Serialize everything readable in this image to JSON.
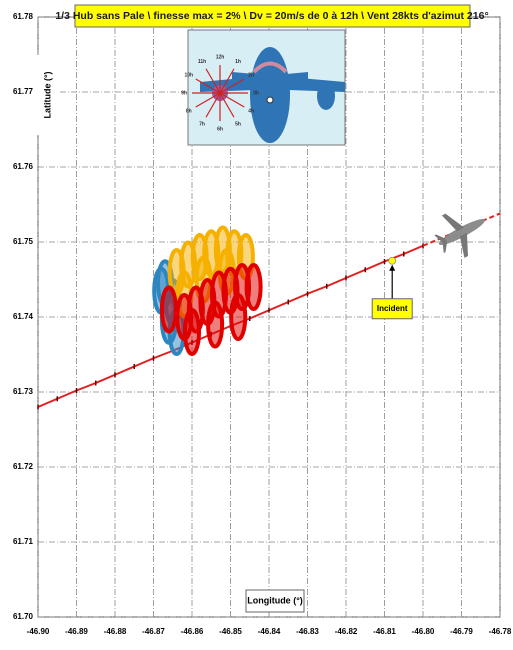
{
  "chart_data": {
    "type": "line",
    "title": "1/3 Hub sans Pale \\ finesse max = 2% \\ Dv = 20m/s de 0 à 12h \\ Vent 28kts d'azimut 216°",
    "x_label": "Longitude (°)",
    "y_label": "Latitude (°)",
    "xlim": [
      -46.9,
      -46.78
    ],
    "xticks": [
      {
        "value": -46.9,
        "label": "-46.90"
      },
      -46.89,
      -46.88,
      -46.87,
      -46.86,
      -46.85,
      -46.84,
      -46.83,
      -46.82,
      -46.81,
      {
        "value": -46.8,
        "label": "-46.80"
      },
      -46.79,
      -46.78
    ],
    "ylim": [
      61.7,
      61.78
    ],
    "yticks": [
      {
        "value": 61.7,
        "label": "61.70"
      },
      61.71,
      61.72,
      61.73,
      61.74,
      61.75,
      61.76,
      61.77,
      61.78
    ],
    "grid": true,
    "series": [
      {
        "style": "line-markers",
        "color": "#e02020",
        "x": [
          -46.9,
          -46.895,
          -46.89,
          -46.885,
          -46.88,
          -46.875,
          -46.87,
          -46.865,
          -46.86,
          -46.855,
          -46.85,
          -46.845,
          -46.84,
          -46.835,
          -46.83,
          -46.825,
          -46.82,
          -46.815,
          -46.81,
          -46.805,
          -46.8
        ],
        "values": [
          61.728,
          61.7291,
          61.7302,
          61.7312,
          61.7323,
          61.7334,
          61.7345,
          61.7355,
          61.7366,
          61.7377,
          61.7388,
          61.7398,
          61.7409,
          61.742,
          61.7431,
          61.7441,
          61.7452,
          61.7463,
          61.7474,
          61.7484,
          61.7495
        ]
      },
      {
        "style": "dashed",
        "color": "#e02020",
        "x": [
          -46.8,
          -46.78
        ],
        "values": [
          61.7495,
          61.7538
        ]
      },
      {
        "style": "loops",
        "color": "#2e86c1",
        "x": [
          -46.868,
          -46.867,
          -46.866,
          -46.865,
          -46.864
        ],
        "values": [
          61.7435,
          61.7445,
          61.7395,
          61.742,
          61.738
        ]
      },
      {
        "style": "loops",
        "color": "#f5b000",
        "x": [
          -46.864,
          -46.861,
          -46.858,
          -46.855,
          -46.852,
          -46.849,
          -46.846,
          -46.862,
          -46.857,
          -46.851
        ],
        "values": [
          61.746,
          61.747,
          61.748,
          61.7485,
          61.749,
          61.7485,
          61.748,
          61.743,
          61.745,
          61.746
        ]
      },
      {
        "style": "loops",
        "color": "#e00000",
        "x": [
          -46.866,
          -46.862,
          -46.859,
          -46.856,
          -46.853,
          -46.85,
          -46.847,
          -46.844,
          -46.86,
          -46.854,
          -46.848
        ],
        "values": [
          61.741,
          61.74,
          61.741,
          61.742,
          61.743,
          61.7435,
          61.744,
          61.744,
          61.738,
          61.739,
          61.74
        ]
      },
      {
        "style": "point",
        "color": "#ffff00",
        "x": [
          -46.808
        ],
        "values": [
          61.7475
        ]
      }
    ],
    "annotations": [
      {
        "text": "Incident",
        "x": -46.808,
        "y": 61.7475
      }
    ]
  },
  "inset": {
    "clock_labels": [
      "12h",
      "1h",
      "2h",
      "3h",
      "4h",
      "5h",
      "6h",
      "7h",
      "8h",
      "9h",
      "10h",
      "11h"
    ]
  }
}
